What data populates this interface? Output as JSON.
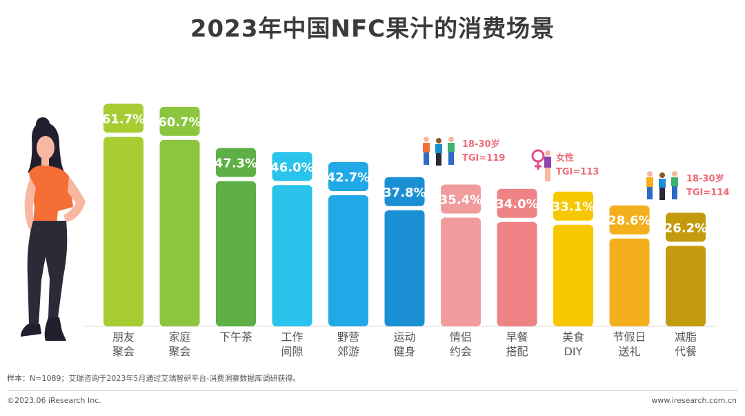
{
  "title": "2023年中国NFC果汁的消费场景",
  "chart_data": {
    "type": "bar",
    "title": "2023年中国NFC果汁的消费场景",
    "categories": [
      "朋友\n聚会",
      "家庭\n聚会",
      "下午茶",
      "工作\n间隙",
      "野营\n郊游",
      "运动\n健身",
      "情侣\n约会",
      "早餐\n搭配",
      "美食\nDIY",
      "节假日\n送礼",
      "减脂\n代餐"
    ],
    "values": [
      61.7,
      60.7,
      47.3,
      46.0,
      42.7,
      37.8,
      35.4,
      34.0,
      33.1,
      28.6,
      26.2
    ],
    "value_labels": [
      "61.7%",
      "60.7%",
      "47.3%",
      "46.0%",
      "42.7%",
      "37.8%",
      "35.4%",
      "34.0%",
      "33.1%",
      "28.6%",
      "26.2%"
    ],
    "colors": [
      "#a7cd33",
      "#8cc63f",
      "#5daf46",
      "#29c3ec",
      "#20a9e6",
      "#1a8fd4",
      "#f29b9d",
      "#ef8285",
      "#f7c700",
      "#f3af1c",
      "#c29b0f"
    ],
    "ylim": [
      0,
      70
    ],
    "grid": false,
    "xlabel": "",
    "ylabel": ""
  },
  "annotations": [
    {
      "line1": "18-30岁",
      "line2": "TGI=119"
    },
    {
      "line1": "女性",
      "line2": "TGI=113"
    },
    {
      "line1": "18-30岁",
      "line2": "TGI=114"
    }
  ],
  "note": "样本：N=1089；艾瑞咨询于2023年5月通过艾瑞智研平台-消费洞察数据库调研获得。",
  "copyright": "©2023.06 iResearch Inc.",
  "site": "www.iresearch.com.cn",
  "icons": [
    "woman-illustration",
    "group-people-icon",
    "female-symbol-icon"
  ],
  "accent_color": "#ec6b76"
}
